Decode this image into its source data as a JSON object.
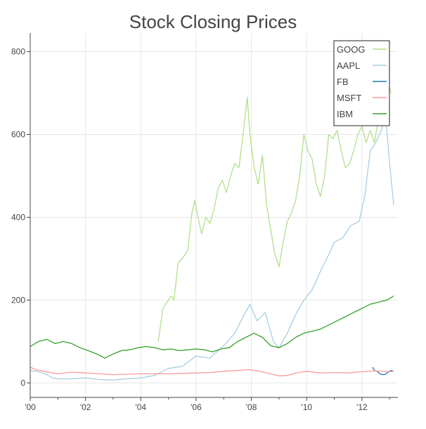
{
  "chart_data": {
    "type": "line",
    "title": "Stock Closing Prices",
    "xlabel": "",
    "ylabel": "",
    "xlim": [
      2000.0,
      2013.3
    ],
    "ylim": [
      -35,
      845
    ],
    "x_tick_values": [
      2000,
      2002,
      2004,
      2006,
      2008,
      2010,
      2012
    ],
    "x_tick_labels": [
      "'00",
      "'02",
      "'04",
      "'06",
      "'08",
      "'10",
      "'12"
    ],
    "y_tick_values": [
      0,
      200,
      400,
      600,
      800
    ],
    "y_tick_labels": [
      "0",
      "200",
      "400",
      "600",
      "800"
    ],
    "grid": true,
    "legend_position": "top-right",
    "series": [
      {
        "name": "GOOG",
        "color": "#b2df8a",
        "x": [
          2004.63,
          2004.8,
          2004.95,
          2005.1,
          2005.2,
          2005.35,
          2005.5,
          2005.7,
          2005.85,
          2005.95,
          2006.1,
          2006.2,
          2006.35,
          2006.5,
          2006.65,
          2006.8,
          2006.95,
          2007.1,
          2007.25,
          2007.4,
          2007.55,
          2007.7,
          2007.85,
          2007.95,
          2008.1,
          2008.25,
          2008.4,
          2008.55,
          2008.7,
          2008.85,
          2009.0,
          2009.15,
          2009.3,
          2009.45,
          2009.6,
          2009.75,
          2009.9,
          2010.05,
          2010.2,
          2010.35,
          2010.5,
          2010.65,
          2010.8,
          2010.95,
          2011.1,
          2011.25,
          2011.4,
          2011.55,
          2011.7,
          2011.85,
          2012.0,
          2012.15,
          2012.3,
          2012.45,
          2012.6,
          2012.75,
          2012.9,
          2013.05
        ],
        "y": [
          100,
          180,
          195,
          210,
          200,
          290,
          300,
          320,
          410,
          440,
          390,
          360,
          400,
          385,
          420,
          470,
          490,
          460,
          500,
          530,
          520,
          600,
          690,
          600,
          520,
          480,
          550,
          430,
          370,
          310,
          280,
          340,
          390,
          410,
          440,
          500,
          600,
          560,
          540,
          480,
          450,
          500,
          600,
          590,
          610,
          560,
          520,
          530,
          560,
          600,
          620,
          580,
          610,
          580,
          640,
          700,
          740,
          700
        ]
      },
      {
        "name": "AAPL",
        "color": "#a6cee3",
        "x": [
          2000.0,
          2000.2,
          2000.4,
          2000.6,
          2000.8,
          2001.0,
          2001.5,
          2002.0,
          2002.5,
          2003.0,
          2003.5,
          2004.0,
          2004.5,
          2005.0,
          2005.5,
          2006.0,
          2006.5,
          2007.0,
          2007.4,
          2007.7,
          2007.95,
          2008.2,
          2008.5,
          2008.8,
          2009.0,
          2009.3,
          2009.6,
          2009.9,
          2010.2,
          2010.5,
          2010.8,
          2011.0,
          2011.3,
          2011.6,
          2011.9,
          2012.1,
          2012.3,
          2012.5,
          2012.7,
          2012.85,
          2013.0,
          2013.15
        ],
        "y": [
          30,
          28,
          25,
          20,
          12,
          10,
          10,
          12,
          8,
          7,
          10,
          12,
          18,
          35,
          40,
          65,
          60,
          90,
          120,
          160,
          190,
          150,
          170,
          100,
          85,
          120,
          165,
          200,
          225,
          270,
          310,
          340,
          350,
          380,
          390,
          450,
          560,
          580,
          610,
          650,
          530,
          430
        ]
      },
      {
        "name": "FB",
        "color": "#1f78b4",
        "x": [
          2012.38,
          2012.45,
          2012.55,
          2012.65,
          2012.75,
          2012.85,
          2012.95,
          2013.05,
          2013.15
        ],
        "y": [
          38,
          30,
          28,
          22,
          20,
          21,
          26,
          30,
          28
        ]
      },
      {
        "name": "MSFT",
        "color": "#fb9a99",
        "x": [
          2000.0,
          2000.2,
          2000.5,
          2000.8,
          2001.0,
          2001.5,
          2002.0,
          2002.5,
          2003.0,
          2003.5,
          2004.0,
          2004.5,
          2005.0,
          2005.5,
          2006.0,
          2006.5,
          2007.0,
          2007.5,
          2007.9,
          2008.3,
          2008.7,
          2009.0,
          2009.3,
          2009.7,
          2010.0,
          2010.5,
          2011.0,
          2011.5,
          2012.0,
          2012.5,
          2013.0,
          2013.15
        ],
        "y": [
          38,
          32,
          28,
          24,
          22,
          26,
          24,
          22,
          20,
          21,
          22,
          22,
          22,
          23,
          24,
          25,
          28,
          30,
          32,
          28,
          22,
          17,
          18,
          25,
          28,
          24,
          25,
          24,
          27,
          29,
          27,
          28
        ]
      },
      {
        "name": "IBM",
        "color": "#33a02c",
        "x": [
          2000.0,
          2000.3,
          2000.6,
          2000.9,
          2001.2,
          2001.5,
          2001.8,
          2002.1,
          2002.4,
          2002.7,
          2003.0,
          2003.3,
          2003.6,
          2003.9,
          2004.2,
          2004.5,
          2004.8,
          2005.1,
          2005.4,
          2005.7,
          2006.0,
          2006.3,
          2006.6,
          2006.9,
          2007.2,
          2007.5,
          2007.8,
          2008.1,
          2008.4,
          2008.7,
          2009.0,
          2009.3,
          2009.6,
          2009.9,
          2010.2,
          2010.5,
          2010.8,
          2011.1,
          2011.4,
          2011.7,
          2012.0,
          2012.3,
          2012.6,
          2012.9,
          2013.15
        ],
        "y": [
          88,
          100,
          105,
          95,
          100,
          95,
          85,
          78,
          70,
          60,
          70,
          78,
          80,
          85,
          88,
          85,
          80,
          82,
          78,
          80,
          82,
          80,
          75,
          82,
          85,
          100,
          110,
          120,
          110,
          90,
          85,
          95,
          110,
          120,
          125,
          130,
          140,
          150,
          160,
          170,
          180,
          190,
          195,
          200,
          210
        ]
      }
    ]
  }
}
